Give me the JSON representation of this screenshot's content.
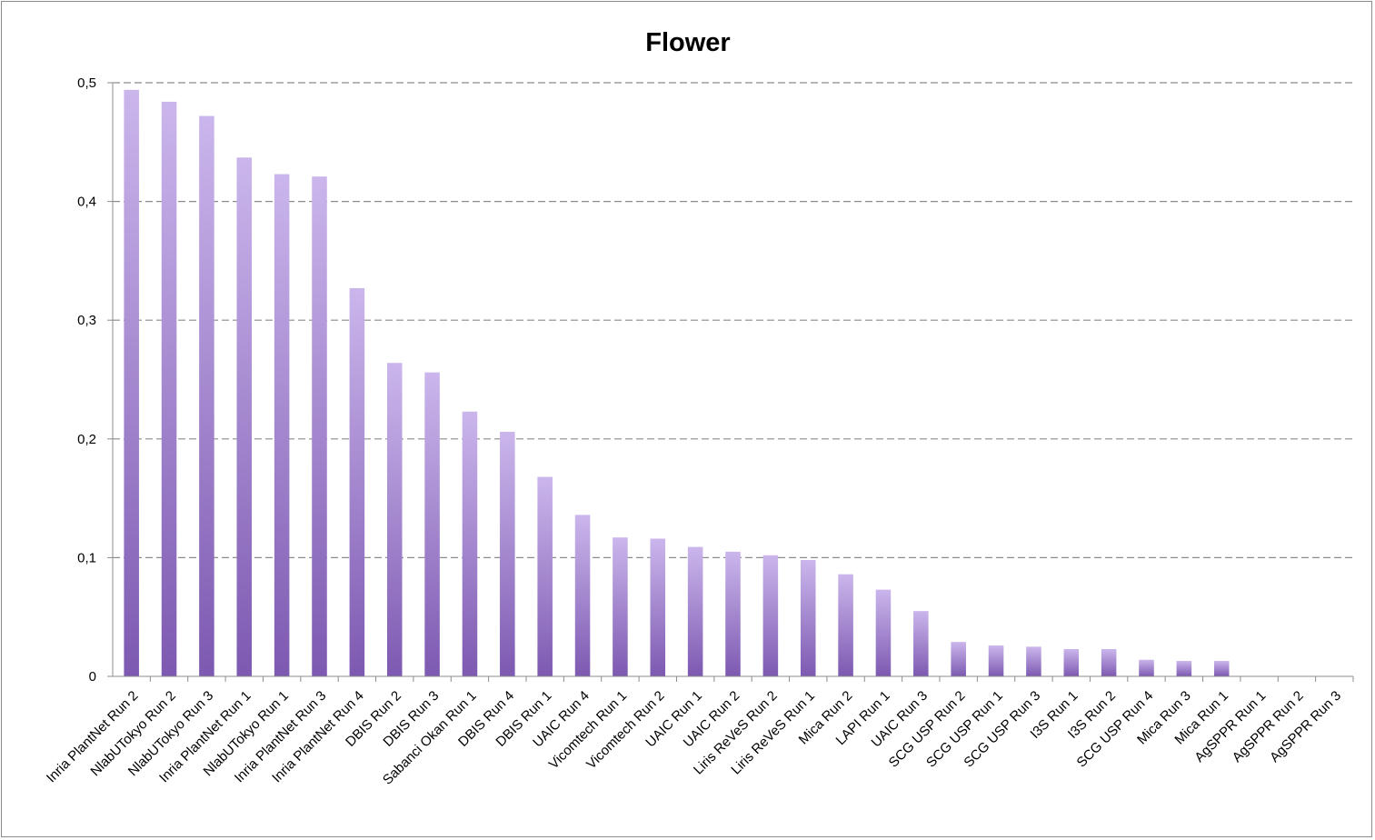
{
  "chart_data": {
    "type": "bar",
    "title": "Flower",
    "xlabel": "",
    "ylabel": "",
    "ylim": [
      0,
      0.5
    ],
    "yticks": [
      "0",
      "0,1",
      "0,2",
      "0,3",
      "0,4",
      "0,5"
    ],
    "grid": true,
    "legend": "none",
    "colors": {
      "bar_top": "#cbb6ec",
      "bar_bottom": "#7d59b1",
      "grid": "#8c8c8c",
      "axis": "#8c8c8c"
    },
    "categories": [
      "Inria PlantNet Run 2",
      "NlabUTokyo Run 2",
      "NlabUTokyo Run 3",
      "Inria PlantNet Run 1",
      "NlabUTokyo Run 1",
      "Inria PlantNet Run 3",
      "Inria PlantNet Run 4",
      "DBIS Run 2",
      "DBIS Run 3",
      "Sabanci Okan Run 1",
      "DBIS Run 4",
      "DBIS Run 1",
      "UAIC Run 4",
      "Vicomtech Run 1",
      "Vicomtech Run 2",
      "UAIC Run 1",
      "UAIC Run 2",
      "Liris ReVeS Run 2",
      "Liris ReVeS Run 1",
      "Mica Run 2",
      "LAPI Run 1",
      "UAIC Run 3",
      "SCG USP Run 2",
      "SCG USP Run 1",
      "SCG USP Run 3",
      "I3S Run 1",
      "I3S Run 2",
      "SCG USP Run 4",
      "Mica Run 3",
      "Mica Run 1",
      "AgSPPR Run 1",
      "AgSPPR Run 2",
      "AgSPPR Run 3"
    ],
    "values": [
      0.494,
      0.484,
      0.472,
      0.437,
      0.423,
      0.421,
      0.327,
      0.264,
      0.256,
      0.223,
      0.206,
      0.168,
      0.136,
      0.117,
      0.116,
      0.109,
      0.105,
      0.102,
      0.098,
      0.086,
      0.073,
      0.055,
      0.029,
      0.026,
      0.025,
      0.023,
      0.023,
      0.014,
      0.013,
      0.013,
      0,
      0,
      0
    ]
  }
}
